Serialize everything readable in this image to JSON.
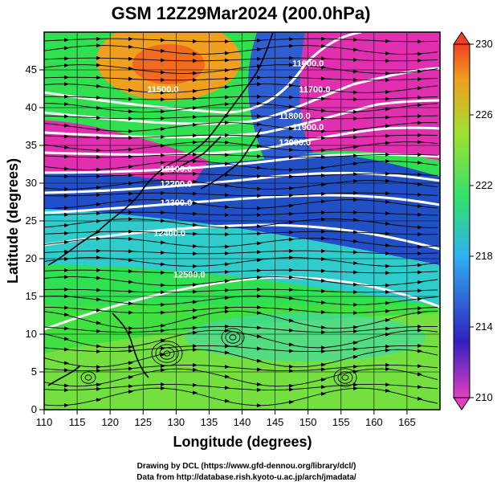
{
  "title": "GSM 12Z29Mar2024 (200.0hPa)",
  "xlabel": "Longitude (degrees)",
  "ylabel": "Latitude  (degrees)",
  "x_ticks": [
    "110",
    "115",
    "120",
    "125",
    "130",
    "135",
    "140",
    "145",
    "150",
    "155",
    "160",
    "165"
  ],
  "y_ticks": [
    "0",
    "5",
    "10",
    "15",
    "20",
    "25",
    "30",
    "35",
    "40",
    "45"
  ],
  "colorbar_labels": [
    "230",
    "226",
    "222",
    "218",
    "214",
    "210"
  ],
  "credits": [
    "Drawing by DCL (https://www.gfd-dennou.org/library/dcl/)",
    "Data from http://database.rish.kyoto-u.ac.jp/arch/jmadata/"
  ],
  "chart_data": {
    "type": "heatmap",
    "x_range": [
      110,
      170
    ],
    "y_range": [
      0,
      50
    ],
    "color_range": [
      210,
      230
    ],
    "colormap": [
      "#e040c0",
      "#2020c0",
      "#30b0f0",
      "#30e070",
      "#a0e030",
      "#f0a020",
      "#f04020"
    ],
    "contours": [
      {
        "label": "11600.0",
        "lon": 150,
        "lat": 45.5
      },
      {
        "label": "11700.0",
        "lon": 151,
        "lat": 42.0
      },
      {
        "label": "11800.0",
        "lon": 148,
        "lat": 38.5
      },
      {
        "label": "11900.0",
        "lon": 150,
        "lat": 37.0
      },
      {
        "label": "12000.0",
        "lon": 148,
        "lat": 35.0
      },
      {
        "label": "12100.0",
        "lon": 130,
        "lat": 31.5
      },
      {
        "label": "12200.0",
        "lon": 130,
        "lat": 29.5
      },
      {
        "label": "12300.0",
        "lon": 130,
        "lat": 27.0
      },
      {
        "label": "12400.0",
        "lon": 129,
        "lat": 23.0
      },
      {
        "label": "12500.0",
        "lon": 132,
        "lat": 17.5
      },
      {
        "label": "11500.0",
        "lon": 128,
        "lat": 42.0
      }
    ]
  }
}
